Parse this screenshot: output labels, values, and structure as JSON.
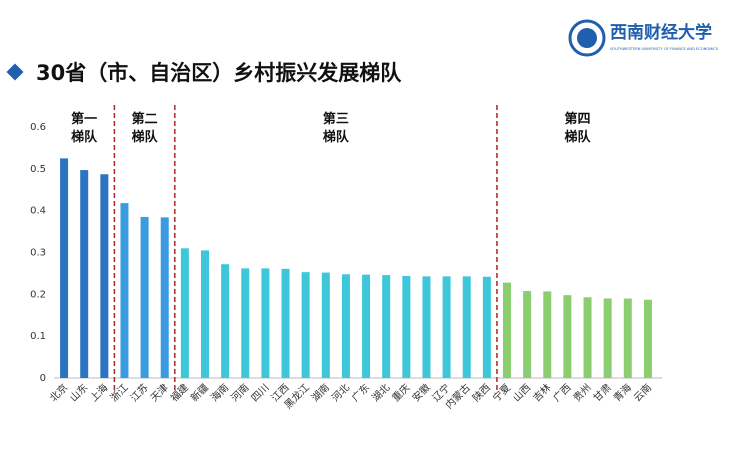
{
  "logo": {
    "name": "西南财经大学",
    "english": "SOUTHWESTERN UNIVERSITY OF FINANCE AND ECONOMICS"
  },
  "chart_data": {
    "type": "bar",
    "title": "30省（市、自治区）乡村振兴发展梯队",
    "categories": [
      "北京",
      "山东",
      "上海",
      "浙江",
      "江苏",
      "天津",
      "福建",
      "新疆",
      "海南",
      "河南",
      "四川",
      "江西",
      "黑龙江",
      "湖南",
      "河北",
      "广东",
      "湖北",
      "重庆",
      "安徽",
      "辽宁",
      "内蒙古",
      "陕西",
      "宁夏",
      "山西",
      "吉林",
      "广西",
      "贵州",
      "甘肃",
      "青海",
      "云南"
    ],
    "series": [
      {
        "name": "第一梯队",
        "color": "#2b74c2",
        "values": [
          0.525,
          0.497,
          0.487,
          null,
          null,
          null,
          null,
          null,
          null,
          null,
          null,
          null,
          null,
          null,
          null,
          null,
          null,
          null,
          null,
          null,
          null,
          null,
          null,
          null,
          null,
          null,
          null,
          null,
          null,
          null
        ]
      },
      {
        "name": "第二梯队",
        "color": "#3a9be0",
        "values": [
          null,
          null,
          null,
          0.418,
          0.385,
          0.384,
          null,
          null,
          null,
          null,
          null,
          null,
          null,
          null,
          null,
          null,
          null,
          null,
          null,
          null,
          null,
          null,
          null,
          null,
          null,
          null,
          null,
          null,
          null,
          null
        ]
      },
      {
        "name": "第三梯队",
        "color": "#3ec7da",
        "values": [
          null,
          null,
          null,
          null,
          null,
          null,
          0.31,
          0.305,
          0.272,
          0.262,
          0.262,
          0.261,
          0.253,
          0.252,
          0.248,
          0.247,
          0.246,
          0.244,
          0.243,
          0.243,
          0.243,
          0.242,
          null,
          null,
          null,
          null,
          null,
          null,
          null,
          null
        ]
      },
      {
        "name": "第四梯队",
        "color": "#8ccd70",
        "values": [
          null,
          null,
          null,
          null,
          null,
          null,
          null,
          null,
          null,
          null,
          null,
          null,
          null,
          null,
          null,
          null,
          null,
          null,
          null,
          null,
          null,
          null,
          0.228,
          0.208,
          0.207,
          0.198,
          0.193,
          0.19,
          0.19,
          0.187
        ]
      }
    ],
    "ylim": [
      0,
      0.6
    ],
    "yticks": [
      0,
      0.1,
      0.2,
      0.3,
      0.4,
      0.5,
      0.6
    ]
  }
}
